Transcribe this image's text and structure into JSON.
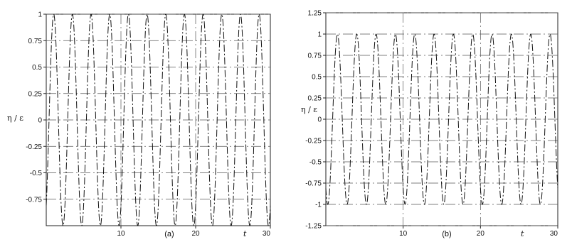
{
  "chart_data": [
    {
      "type": "line",
      "panel_label": "(a)",
      "xlabel": "t",
      "ylabel": "η / ε",
      "xlim": [
        0,
        30
      ],
      "ylim": [
        -1,
        1
      ],
      "xticks": [
        10,
        20,
        30
      ],
      "yticks": [
        -0.75,
        -0.5,
        -0.25,
        0,
        0.25,
        0.5,
        0.75,
        1
      ],
      "ytick_labels": [
        "-0.75",
        "-0.5",
        "-0.25",
        "0",
        "0.25",
        "0.5",
        "0.75",
        "1"
      ],
      "grid": true,
      "series": [
        {
          "amplitude": 1,
          "offset": 0,
          "period": 2.5,
          "peaks_at": [
            1,
            3.5,
            6,
            8.5,
            11,
            13.5,
            16,
            18.5,
            21,
            23.5,
            26,
            28.5
          ]
        }
      ]
    },
    {
      "type": "line",
      "panel_label": "(b)",
      "xlabel": "t",
      "ylabel": "η / ε",
      "xlim": [
        0,
        30
      ],
      "ylim": [
        -1.25,
        1.25
      ],
      "xticks": [
        10,
        20,
        30
      ],
      "yticks": [
        -1.25,
        -1,
        -0.75,
        -0.5,
        -0.25,
        0,
        0.25,
        0.5,
        0.75,
        1,
        1.25
      ],
      "ytick_labels": [
        "-1.25",
        "-1",
        "-0.75",
        "-0.5",
        "-0.25",
        "0",
        "0.25",
        "0.5",
        "0.75",
        "1",
        "1.25"
      ],
      "grid": true,
      "series": [
        {
          "amplitude": 1,
          "offset": 0,
          "period": 2.5,
          "peaks_at": [
            1.5,
            4,
            6.5,
            9,
            11.5,
            14,
            16.5,
            19,
            21.5,
            24,
            26.5,
            29
          ]
        }
      ]
    }
  ]
}
